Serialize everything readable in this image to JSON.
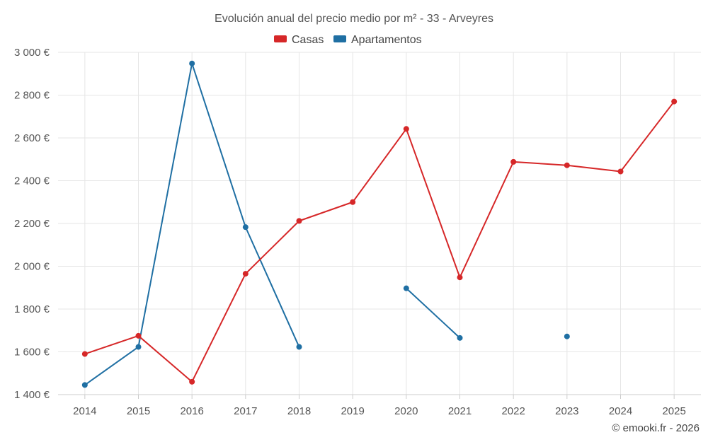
{
  "chart_data": {
    "type": "line",
    "title": "Evolución anual del precio medio por m² - 33 - Arveyres",
    "categories": [
      "2014",
      "2015",
      "2016",
      "2017",
      "2018",
      "2019",
      "2020",
      "2021",
      "2022",
      "2023",
      "2024",
      "2025"
    ],
    "ylim": [
      1400,
      3000
    ],
    "yticks": [
      1400,
      1600,
      1800,
      2000,
      2200,
      2400,
      2600,
      2800,
      3000
    ],
    "ytick_labels": [
      "1 400 €",
      "1 600 €",
      "1 800 €",
      "2 000 €",
      "2 200 €",
      "2 400 €",
      "2 600 €",
      "2 800 €",
      "3 000 €"
    ],
    "grid": true,
    "legend_position": "top-center",
    "series": [
      {
        "name": "Casas",
        "color": "#d62728",
        "values": [
          1590,
          1675,
          1460,
          1965,
          2212,
          2300,
          2642,
          1948,
          2488,
          2472,
          2443,
          2770
        ]
      },
      {
        "name": "Apartamentos",
        "color": "#1f6fa3",
        "values": [
          1445,
          1623,
          2948,
          2183,
          1623,
          null,
          1897,
          1665,
          null,
          1672,
          null,
          null
        ]
      }
    ]
  },
  "credit": "© emooki.fr - 2026"
}
